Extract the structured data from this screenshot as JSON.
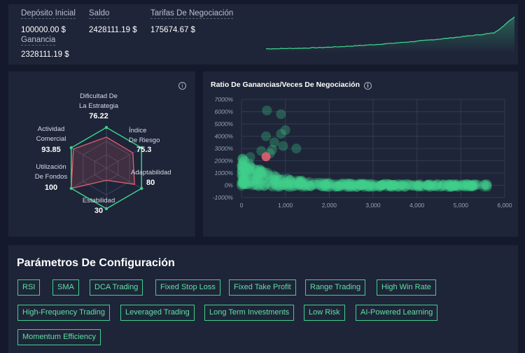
{
  "stats": {
    "deposit_label": "Depósito Inicial",
    "deposit_value": "100000.00 $",
    "balance_label": "Saldo",
    "balance_value": "2428111.19 $",
    "fees_label": "Tarifas De Negociación",
    "fees_value": "175674.67 $",
    "gain_label": "Ganancia",
    "gain_value": "2328111.19 $",
    "sparkline_color": "#3fd08c"
  },
  "radar": {
    "info_icon": "info-icon",
    "axes": [
      {
        "label_line1": "Dificultad De",
        "label_line2": "La Estrategia",
        "value": "76.22"
      },
      {
        "label_line1": "Índice",
        "label_line2": "De Riesgo",
        "value": "75.3"
      },
      {
        "label_line1": "Adaptabilidad",
        "label_line2": "",
        "value": "80"
      },
      {
        "label_line1": "Estabilidad",
        "label_line2": "",
        "value": "30"
      },
      {
        "label_line1": "Utilización",
        "label_line2": "De Fondos",
        "value": "100"
      },
      {
        "label_line1": "Actividad",
        "label_line2": "Comercial",
        "value": "93.85"
      }
    ],
    "grid_color": "#3fd08c",
    "fill_color": "#e06070"
  },
  "chart_data": {
    "type": "scatter",
    "title": "Ratio De Ganancias/Veces De Negociación",
    "xlim": [
      0,
      6000
    ],
    "ylim": [
      -1000,
      7000
    ],
    "x_ticks": [
      "0",
      "1,000",
      "2,000",
      "3,000",
      "4,000",
      "5,000",
      "6,000"
    ],
    "y_ticks": [
      "7000%",
      "6000%",
      "5000%",
      "4000%",
      "3000%",
      "2000%",
      "1000%",
      "0%",
      "-1000%"
    ],
    "grid": true,
    "point_color": "#3fd08c",
    "highlight_color": "#e06070",
    "highlight_point": {
      "x": 560,
      "y": 2330
    },
    "outliers": [
      {
        "x": 580,
        "y": 6100
      },
      {
        "x": 900,
        "y": 5800
      },
      {
        "x": 1000,
        "y": 4500
      },
      {
        "x": 900,
        "y": 4200
      },
      {
        "x": 560,
        "y": 4000
      },
      {
        "x": 750,
        "y": 3500
      },
      {
        "x": 950,
        "y": 3200
      },
      {
        "x": 1250,
        "y": 3000
      },
      {
        "x": 450,
        "y": 2800
      },
      {
        "x": 650,
        "y": 2600
      },
      {
        "x": 200,
        "y": 2300
      },
      {
        "x": 700,
        "y": 2900
      }
    ]
  },
  "config": {
    "title": "Parámetros De Configuración",
    "tags_row1": [
      "RSI",
      "SMA",
      "DCA Trading",
      "Fixed Stop Loss",
      "Fixed Take Profit",
      "Range Trading",
      "High Win Rate"
    ],
    "tags_row2": [
      "High-Frequency Trading",
      "Leveraged Trading",
      "Long Term Investments",
      "Low Risk",
      "AI-Powered Learning"
    ],
    "tags_row3": [
      "Momentum Efficiency"
    ],
    "tag_color": "#3fd08c"
  }
}
